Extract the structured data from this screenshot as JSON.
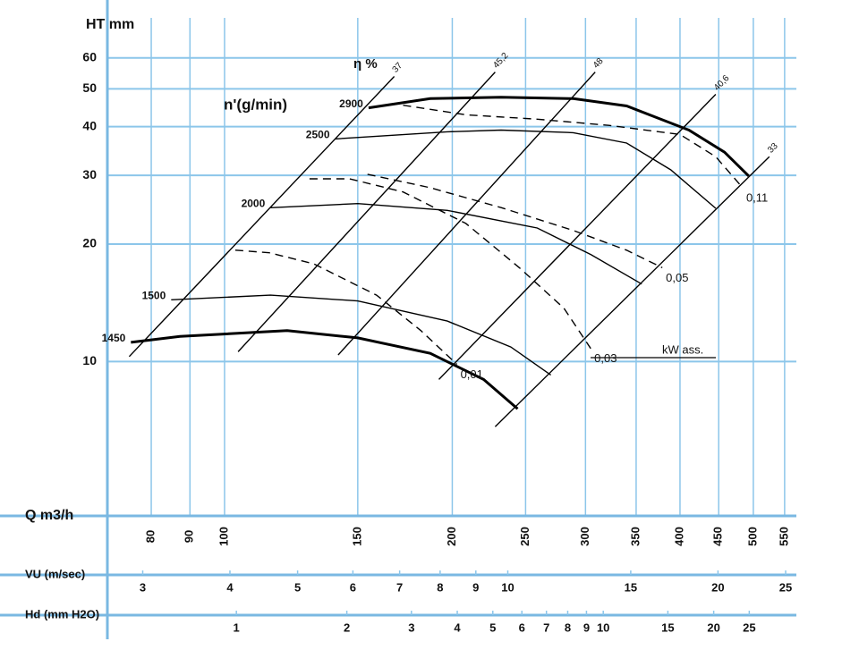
{
  "chart_data": {
    "type": "line",
    "xscale": "log",
    "yscale": "log",
    "grid": true,
    "grid_color": "#8cc6ea",
    "y_label": "HT mm",
    "x_label": "Q m3/h",
    "xlim": [
      70,
      570
    ],
    "xticks": [
      80,
      90,
      100,
      150,
      200,
      250,
      300,
      350,
      400,
      450,
      500,
      550
    ],
    "ylim": [
      4.4,
      76
    ],
    "yticks": [
      10,
      20,
      30,
      40,
      50,
      60
    ],
    "speed_label": "n'(g/min)",
    "series": [
      {
        "name": "2900",
        "color": "#000000",
        "bold": true,
        "x": [
          155,
          187,
          232,
          289,
          340,
          411,
          458,
          493
        ],
        "values": [
          44.7,
          47.2,
          47.6,
          47.2,
          45.2,
          39.2,
          34.4,
          29.9
        ]
      },
      {
        "name": "2500",
        "color": "#000000",
        "bold": false,
        "x": [
          140,
          197,
          232,
          289,
          340,
          389,
          446
        ],
        "values": [
          37.2,
          38.8,
          39.2,
          38.6,
          36.3,
          31.0,
          24.7
        ]
      },
      {
        "name": "2000",
        "color": "#000000",
        "bold": false,
        "x": [
          115,
          150,
          197,
          259,
          305,
          356
        ],
        "values": [
          24.8,
          25.4,
          24.4,
          22.0,
          18.8,
          15.8
        ]
      },
      {
        "name": "1500",
        "color": "#000000",
        "bold": false,
        "x": [
          85,
          115,
          150,
          197,
          239,
          270
        ],
        "values": [
          14.4,
          14.8,
          14.3,
          12.7,
          10.9,
          9.24
        ]
      },
      {
        "name": "1450",
        "color": "#000000",
        "bold": true,
        "x": [
          75.2,
          87.3,
          121,
          150,
          187,
          220,
          244
        ],
        "values": [
          11.2,
          11.6,
          12.0,
          11.5,
          10.5,
          9.0,
          7.57
        ]
      }
    ],
    "efficiency_label": "η %",
    "efficiency_lines": [
      {
        "name": "37",
        "color": "#000000",
        "x": [
          74.8,
          167.6
        ],
        "values": [
          10.3,
          53.8
        ]
      },
      {
        "name": "45,2",
        "color": "#000000",
        "x": [
          104.2,
          227.9
        ],
        "values": [
          10.6,
          55.2
        ]
      },
      {
        "name": "48",
        "color": "#000000",
        "x": [
          141.3,
          309
        ],
        "values": [
          10.4,
          55.2
        ]
      },
      {
        "name": "40,6",
        "color": "#000000",
        "x": [
          192,
          446
        ],
        "values": [
          9.0,
          48.4
        ]
      },
      {
        "name": "33",
        "color": "#000000",
        "x": [
          227.9,
          525
        ],
        "values": [
          6.81,
          33.5
        ]
      }
    ],
    "power_label": "kW ass.",
    "power_curves": [
      {
        "name": "0,01",
        "color": "#000000",
        "dash": true,
        "x": [
          103.3,
          114.6,
          131.2,
          158.8,
          181.8,
          202.8
        ],
        "values": [
          19.3,
          19.0,
          17.8,
          14.8,
          12.0,
          9.84
        ]
      },
      {
        "name": "0,03",
        "color": "#000000",
        "dash": true,
        "x": [
          129.5,
          146.3,
          172.2,
          208.4,
          245.3,
          280.9,
          304.8
        ],
        "values": [
          29.4,
          29.4,
          27.2,
          22.6,
          17.4,
          13.7,
          10.8
        ]
      },
      {
        "name": "0,05",
        "color": "#000000",
        "dash": true,
        "x": [
          154.5,
          186.9,
          232.3,
          288.7,
          339.9,
          379
        ],
        "values": [
          30.2,
          27.9,
          24.8,
          21.7,
          19.3,
          17.4
        ]
      },
      {
        "name": "0,11",
        "color": "#000000",
        "dash": true,
        "x": [
          172.2,
          208.4,
          259,
          322,
          400,
          446,
          484
        ],
        "values": [
          45.4,
          42.9,
          41.8,
          40.3,
          38.2,
          33.5,
          27.9
        ]
      }
    ],
    "secondary_axes": [
      {
        "label": "VU (m/sec)",
        "xlim": [
          2.67,
          25.9
        ],
        "xticks": [
          3,
          4,
          5,
          6,
          7,
          8,
          9,
          10,
          15,
          20,
          25
        ]
      },
      {
        "label": "Hd (mm H2O)",
        "xlim": [
          0.445,
          33.6
        ],
        "xticks": [
          1,
          2,
          3,
          4,
          5,
          6,
          7,
          8,
          9,
          10,
          15,
          20,
          25
        ]
      }
    ]
  }
}
